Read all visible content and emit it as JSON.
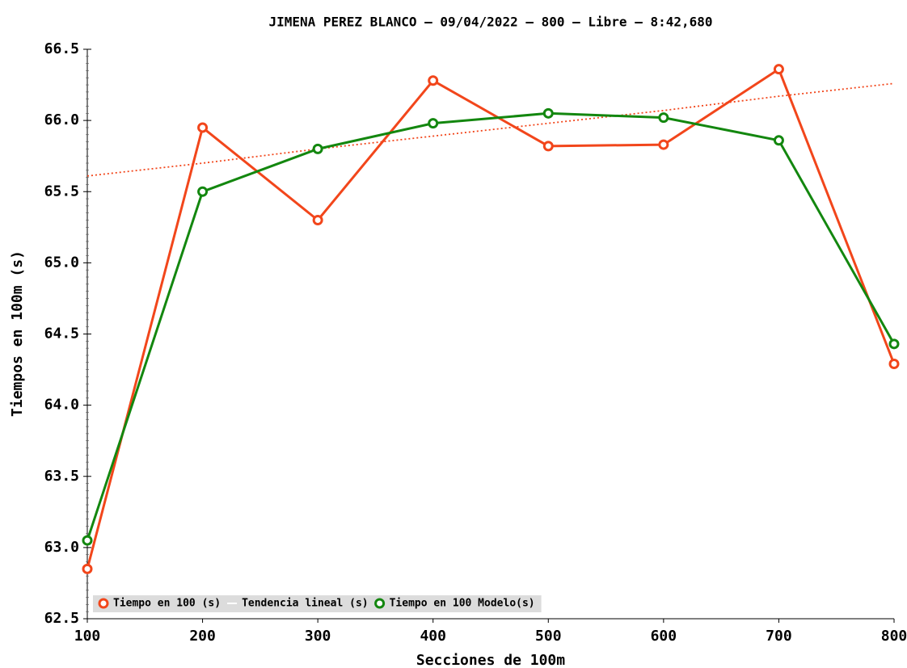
{
  "chart_data": {
    "type": "line",
    "title": "JIMENA PEREZ BLANCO – 09/04/2022 – 800 – Libre – 8:42,680",
    "x_label": "Secciones de 100m",
    "y_label": "Tiempos en 100m (s)",
    "x": [
      100,
      200,
      300,
      400,
      500,
      600,
      700,
      800
    ],
    "xlim": [
      100,
      800
    ],
    "xticks": [
      100,
      200,
      300,
      400,
      500,
      600,
      700,
      800
    ],
    "ylim": [
      62.5,
      66.5
    ],
    "yticks": [
      62.5,
      {
        "value": 63,
        "label": "63.0"
      },
      63.5,
      {
        "value": 64,
        "label": "64.0"
      },
      64.5,
      {
        "value": 65,
        "label": "65.0"
      },
      65.5,
      {
        "value": 66,
        "label": "66.0"
      },
      66.5
    ],
    "legend": "lower-left",
    "series": [
      {
        "name": "Tiempo en 100 (s)",
        "color": "#f2461b",
        "markers": true,
        "values": [
          62.85,
          65.95,
          65.3,
          66.28,
          65.82,
          65.83,
          66.36,
          64.29
        ]
      },
      {
        "name": "Tendencia lineal (s)",
        "color": "#f2461b",
        "dotted": true,
        "markers": false,
        "values": [
          65.61,
          65.7,
          65.8,
          65.89,
          65.98,
          66.07,
          66.17,
          66.26
        ]
      },
      {
        "name": "Tiempo en 100 Modelo(s)",
        "color": "#13870f",
        "markers": true,
        "values": [
          63.05,
          65.5,
          65.8,
          65.98,
          66.05,
          66.02,
          65.86,
          64.43
        ]
      }
    ]
  }
}
